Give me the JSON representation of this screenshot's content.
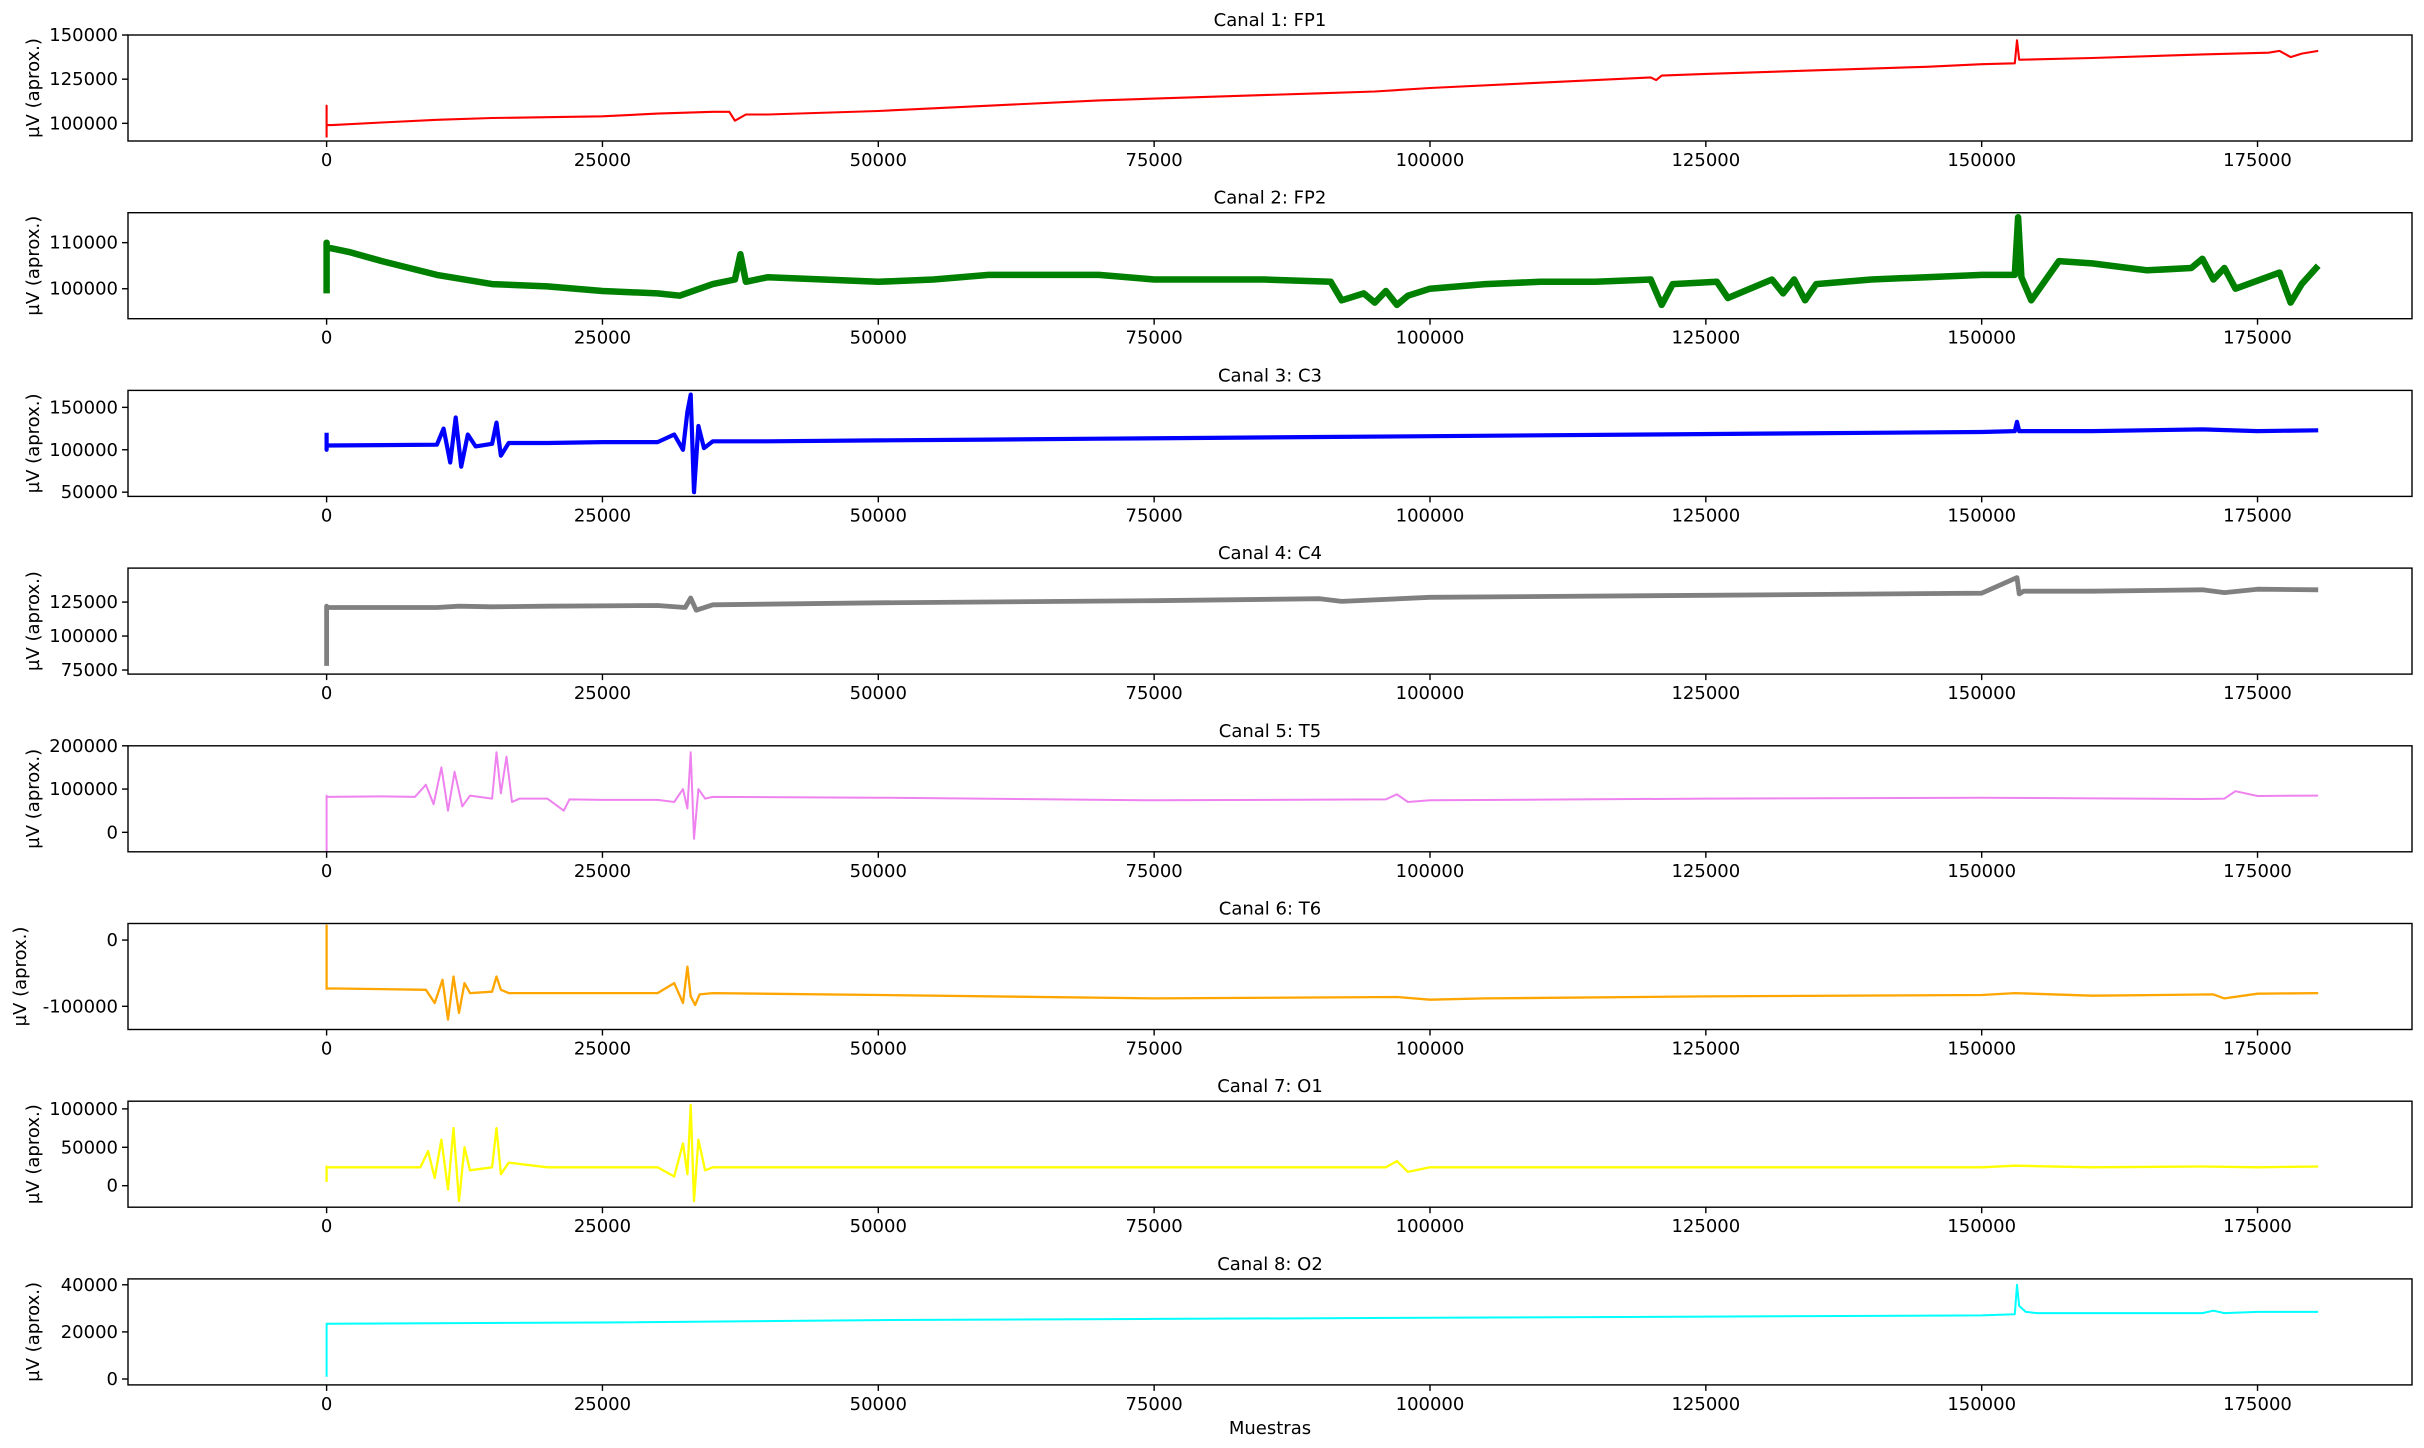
{
  "figure": {
    "xlabel": "Muestras"
  },
  "chart_data": [
    {
      "type": "line",
      "title": "Canal 1: FP1",
      "ylabel": "µV (aprox.)",
      "color": "#ff0000",
      "xlim": [
        -18000,
        189000
      ],
      "ylim": [
        90000,
        150000
      ],
      "xticks": [
        0,
        25000,
        50000,
        75000,
        100000,
        125000,
        150000,
        175000
      ],
      "yticks": [
        100000,
        125000,
        150000
      ],
      "x": [
        0,
        0,
        0,
        0,
        500,
        5000,
        10000,
        15000,
        20000,
        25000,
        30000,
        35000,
        36500,
        37000,
        38000,
        40000,
        50000,
        60000,
        70000,
        80000,
        90000,
        95000,
        100000,
        110000,
        120000,
        120500,
        121000,
        125000,
        135000,
        145000,
        150000,
        153000,
        153200,
        153400,
        153600,
        160000,
        170000,
        176000,
        177000,
        178000,
        179000,
        180500
      ],
      "y": [
        92000,
        110000,
        98000,
        99000,
        99000,
        100500,
        102000,
        103000,
        103500,
        104000,
        105500,
        106500,
        106500,
        101500,
        105000,
        105000,
        107000,
        110000,
        113000,
        115000,
        117000,
        118000,
        120000,
        123000,
        126000,
        124500,
        127000,
        128000,
        130000,
        132000,
        133500,
        134000,
        147000,
        136000,
        136000,
        137000,
        139000,
        140000,
        141000,
        137500,
        139500,
        141000
      ],
      "band": 1200
    },
    {
      "type": "line",
      "title": "Canal 2: FP2",
      "ylabel": "µV (aprox.)",
      "color": "#008000",
      "xlim": [
        -18000,
        189000
      ],
      "ylim": [
        93500,
        116500
      ],
      "xticks": [
        0,
        25000,
        50000,
        75000,
        100000,
        125000,
        150000,
        175000
      ],
      "yticks": [
        100000,
        110000
      ],
      "x": [
        0,
        0,
        0,
        0,
        2000,
        5000,
        10000,
        15000,
        20000,
        25000,
        30000,
        32000,
        35000,
        37000,
        37500,
        38000,
        40000,
        45000,
        50000,
        55000,
        60000,
        65000,
        70000,
        75000,
        80000,
        85000,
        91000,
        92000,
        94000,
        95000,
        96000,
        97000,
        98000,
        100000,
        105000,
        110000,
        115000,
        120000,
        121000,
        122000,
        126000,
        127000,
        131000,
        132000,
        133000,
        134000,
        135000,
        140000,
        145000,
        150000,
        153000,
        153300,
        153600,
        154500,
        157000,
        160000,
        165000,
        169000,
        170000,
        171000,
        172000,
        173000,
        177000,
        178000,
        179000,
        180500
      ],
      "y": [
        99000,
        110000,
        109000,
        109000,
        108000,
        106000,
        103000,
        101000,
        100500,
        99500,
        99000,
        98500,
        101000,
        102000,
        107500,
        101500,
        102500,
        102000,
        101500,
        102000,
        103000,
        103000,
        103000,
        102000,
        102000,
        102000,
        101500,
        97500,
        99000,
        97000,
        99500,
        96500,
        98500,
        100000,
        101000,
        101500,
        101500,
        102000,
        96500,
        101000,
        101500,
        98000,
        102000,
        99000,
        102000,
        97500,
        101000,
        102000,
        102500,
        103000,
        103000,
        115500,
        102500,
        97500,
        106000,
        105500,
        104000,
        104500,
        106500,
        102000,
        104500,
        100000,
        103500,
        97000,
        101000,
        105000
      ],
      "band": 1400
    },
    {
      "type": "line",
      "title": "Canal 3: C3",
      "ylabel": "µV (aprox.)",
      "color": "#0000ff",
      "xlim": [
        -18000,
        189000
      ],
      "ylim": [
        45000,
        170000
      ],
      "xticks": [
        0,
        25000,
        50000,
        75000,
        100000,
        125000,
        150000,
        175000
      ],
      "yticks": [
        50000,
        100000,
        150000
      ],
      "x": [
        0,
        0,
        0,
        5000,
        10000,
        10600,
        11200,
        11700,
        12200,
        12800,
        13500,
        15000,
        15400,
        15800,
        16500,
        20000,
        25000,
        30000,
        31500,
        32300,
        32700,
        33000,
        33300,
        33700,
        34200,
        35000,
        40000,
        50000,
        60000,
        70000,
        80000,
        90000,
        100000,
        110000,
        120000,
        130000,
        140000,
        150000,
        153000,
        153200,
        153400,
        160000,
        170000,
        175000,
        180500
      ],
      "y": [
        120000,
        100000,
        105000,
        105500,
        106000,
        125000,
        85000,
        138000,
        80000,
        118000,
        104000,
        107000,
        132000,
        93000,
        108000,
        108000,
        109000,
        109000,
        118000,
        100000,
        145000,
        165000,
        50000,
        128000,
        102000,
        110000,
        110000,
        111000,
        112000,
        113000,
        114000,
        115000,
        116000,
        117000,
        118000,
        119000,
        120000,
        121000,
        122000,
        133000,
        122000,
        122000,
        124000,
        122000,
        123000
      ],
      "band": 5000
    },
    {
      "type": "line",
      "title": "Canal 4: C4",
      "ylabel": "µV (aprox.)",
      "color": "#808080",
      "xlim": [
        -18000,
        189000
      ],
      "ylim": [
        72000,
        150000
      ],
      "xticks": [
        0,
        25000,
        50000,
        75000,
        100000,
        125000,
        150000,
        175000
      ],
      "yticks": [
        75000,
        100000,
        125000
      ],
      "x": [
        0,
        0,
        0,
        5000,
        10000,
        12000,
        15000,
        20000,
        30000,
        32500,
        33000,
        33500,
        35000,
        50000,
        75000,
        90000,
        92000,
        100000,
        125000,
        150000,
        153200,
        153400,
        153800,
        160000,
        170000,
        172000,
        175000,
        180500
      ],
      "y": [
        78000,
        122000,
        121000,
        121000,
        121000,
        122000,
        121500,
        122000,
        122500,
        121000,
        128000,
        119000,
        123000,
        124500,
        126000,
        127500,
        125500,
        128500,
        130000,
        131500,
        143000,
        131000,
        133000,
        133000,
        134000,
        132000,
        134500,
        134000
      ],
      "band": 3500
    },
    {
      "type": "line",
      "title": "Canal 5: T5",
      "ylabel": "µV (aprox.)",
      "color": "#ee82ee",
      "xlim": [
        -18000,
        189000
      ],
      "ylim": [
        -45000,
        200000
      ],
      "xticks": [
        0,
        25000,
        50000,
        75000,
        100000,
        125000,
        150000,
        175000
      ],
      "yticks": [
        0,
        100000,
        200000
      ],
      "x": [
        0,
        0,
        0,
        5000,
        8000,
        9000,
        9700,
        10400,
        11000,
        11600,
        12300,
        13000,
        15000,
        15400,
        15800,
        16300,
        16800,
        17500,
        20000,
        21500,
        22000,
        25000,
        30000,
        31500,
        32300,
        32700,
        33000,
        33300,
        33700,
        34300,
        35000,
        50000,
        75000,
        96000,
        97000,
        98000,
        100000,
        125000,
        150000,
        170000,
        172000,
        173000,
        175000,
        180500
      ],
      "y": [
        -60000,
        85000,
        82000,
        83000,
        82000,
        110000,
        65000,
        150000,
        50000,
        140000,
        60000,
        85000,
        78000,
        185000,
        90000,
        175000,
        70000,
        78000,
        78000,
        50000,
        76000,
        75000,
        75000,
        70000,
        100000,
        55000,
        185000,
        -15000,
        100000,
        78000,
        82000,
        80000,
        74000,
        76000,
        88000,
        70000,
        74000,
        78000,
        80000,
        77000,
        78000,
        95000,
        84000,
        85000
      ],
      "band": 4000
    },
    {
      "type": "line",
      "title": "Canal 6: T6",
      "ylabel": "µV (aprox.)",
      "color": "#ffa500",
      "xlim": [
        -18000,
        189000
      ],
      "ylim": [
        -135000,
        25000
      ],
      "xticks": [
        0,
        25000,
        50000,
        75000,
        100000,
        125000,
        150000,
        175000
      ],
      "yticks": [
        -100000,
        0
      ],
      "x": [
        0,
        0,
        0,
        5000,
        9000,
        9800,
        10500,
        11000,
        11500,
        12000,
        12500,
        13000,
        15000,
        15400,
        15800,
        16500,
        20000,
        25000,
        30000,
        31500,
        32300,
        32700,
        33000,
        33400,
        33800,
        35000,
        50000,
        75000,
        97000,
        100000,
        105000,
        125000,
        150000,
        153000,
        160000,
        171000,
        172000,
        175000,
        180500
      ],
      "y": [
        -75000,
        22000,
        -73000,
        -74000,
        -75000,
        -95000,
        -60000,
        -120000,
        -55000,
        -110000,
        -65000,
        -80000,
        -78000,
        -55000,
        -75000,
        -80000,
        -80000,
        -80000,
        -80000,
        -65000,
        -95000,
        -40000,
        -85000,
        -98000,
        -82000,
        -80000,
        -83000,
        -88000,
        -86000,
        -90000,
        -88000,
        -85000,
        -83000,
        -80000,
        -84000,
        -82000,
        -88000,
        -81000,
        -80000
      ],
      "band": 3500
    },
    {
      "type": "line",
      "title": "Canal 7: O1",
      "ylabel": "µV (aprox.)",
      "color": "#ffff00",
      "xlim": [
        -18000,
        189000
      ],
      "ylim": [
        -28000,
        110000
      ],
      "xticks": [
        0,
        25000,
        50000,
        75000,
        100000,
        125000,
        150000,
        175000
      ],
      "yticks": [
        0,
        50000,
        100000
      ],
      "x": [
        0,
        0,
        0,
        5000,
        8500,
        9200,
        9800,
        10400,
        11000,
        11500,
        12000,
        12500,
        13000,
        15000,
        15400,
        15800,
        16500,
        20000,
        25000,
        30000,
        31500,
        32300,
        32700,
        33000,
        33300,
        33700,
        34300,
        35000,
        50000,
        75000,
        96000,
        97000,
        98000,
        100000,
        125000,
        150000,
        153000,
        160000,
        170000,
        175000,
        180500
      ],
      "y": [
        5000,
        25000,
        24000,
        24000,
        24000,
        45000,
        10000,
        60000,
        -5000,
        75000,
        -20000,
        50000,
        20000,
        24000,
        75000,
        15000,
        30000,
        24000,
        24000,
        24000,
        12000,
        55000,
        15000,
        105000,
        -20000,
        60000,
        20000,
        24000,
        24000,
        24000,
        24000,
        32000,
        18000,
        24000,
        24000,
        24000,
        26000,
        24000,
        25000,
        24000,
        25000
      ],
      "band": 3000
    },
    {
      "type": "line",
      "title": "Canal 8: O2",
      "ylabel": "µV (aprox.)",
      "color": "#00ffff",
      "xlim": [
        -18000,
        189000
      ],
      "ylim": [
        -2500,
        42500
      ],
      "xticks": [
        0,
        25000,
        50000,
        75000,
        100000,
        125000,
        150000,
        175000
      ],
      "yticks": [
        0,
        20000,
        40000
      ],
      "x": [
        0,
        0,
        0,
        25000,
        50000,
        75000,
        100000,
        125000,
        150000,
        153000,
        153200,
        153400,
        154000,
        155000,
        160000,
        170000,
        171000,
        172000,
        175000,
        180500
      ],
      "y": [
        1000,
        23500,
        23500,
        24000,
        25000,
        25500,
        26000,
        26500,
        27000,
        27500,
        40000,
        31000,
        28500,
        28000,
        28000,
        28000,
        29000,
        28000,
        28500,
        28500
      ],
      "band": 400
    }
  ]
}
